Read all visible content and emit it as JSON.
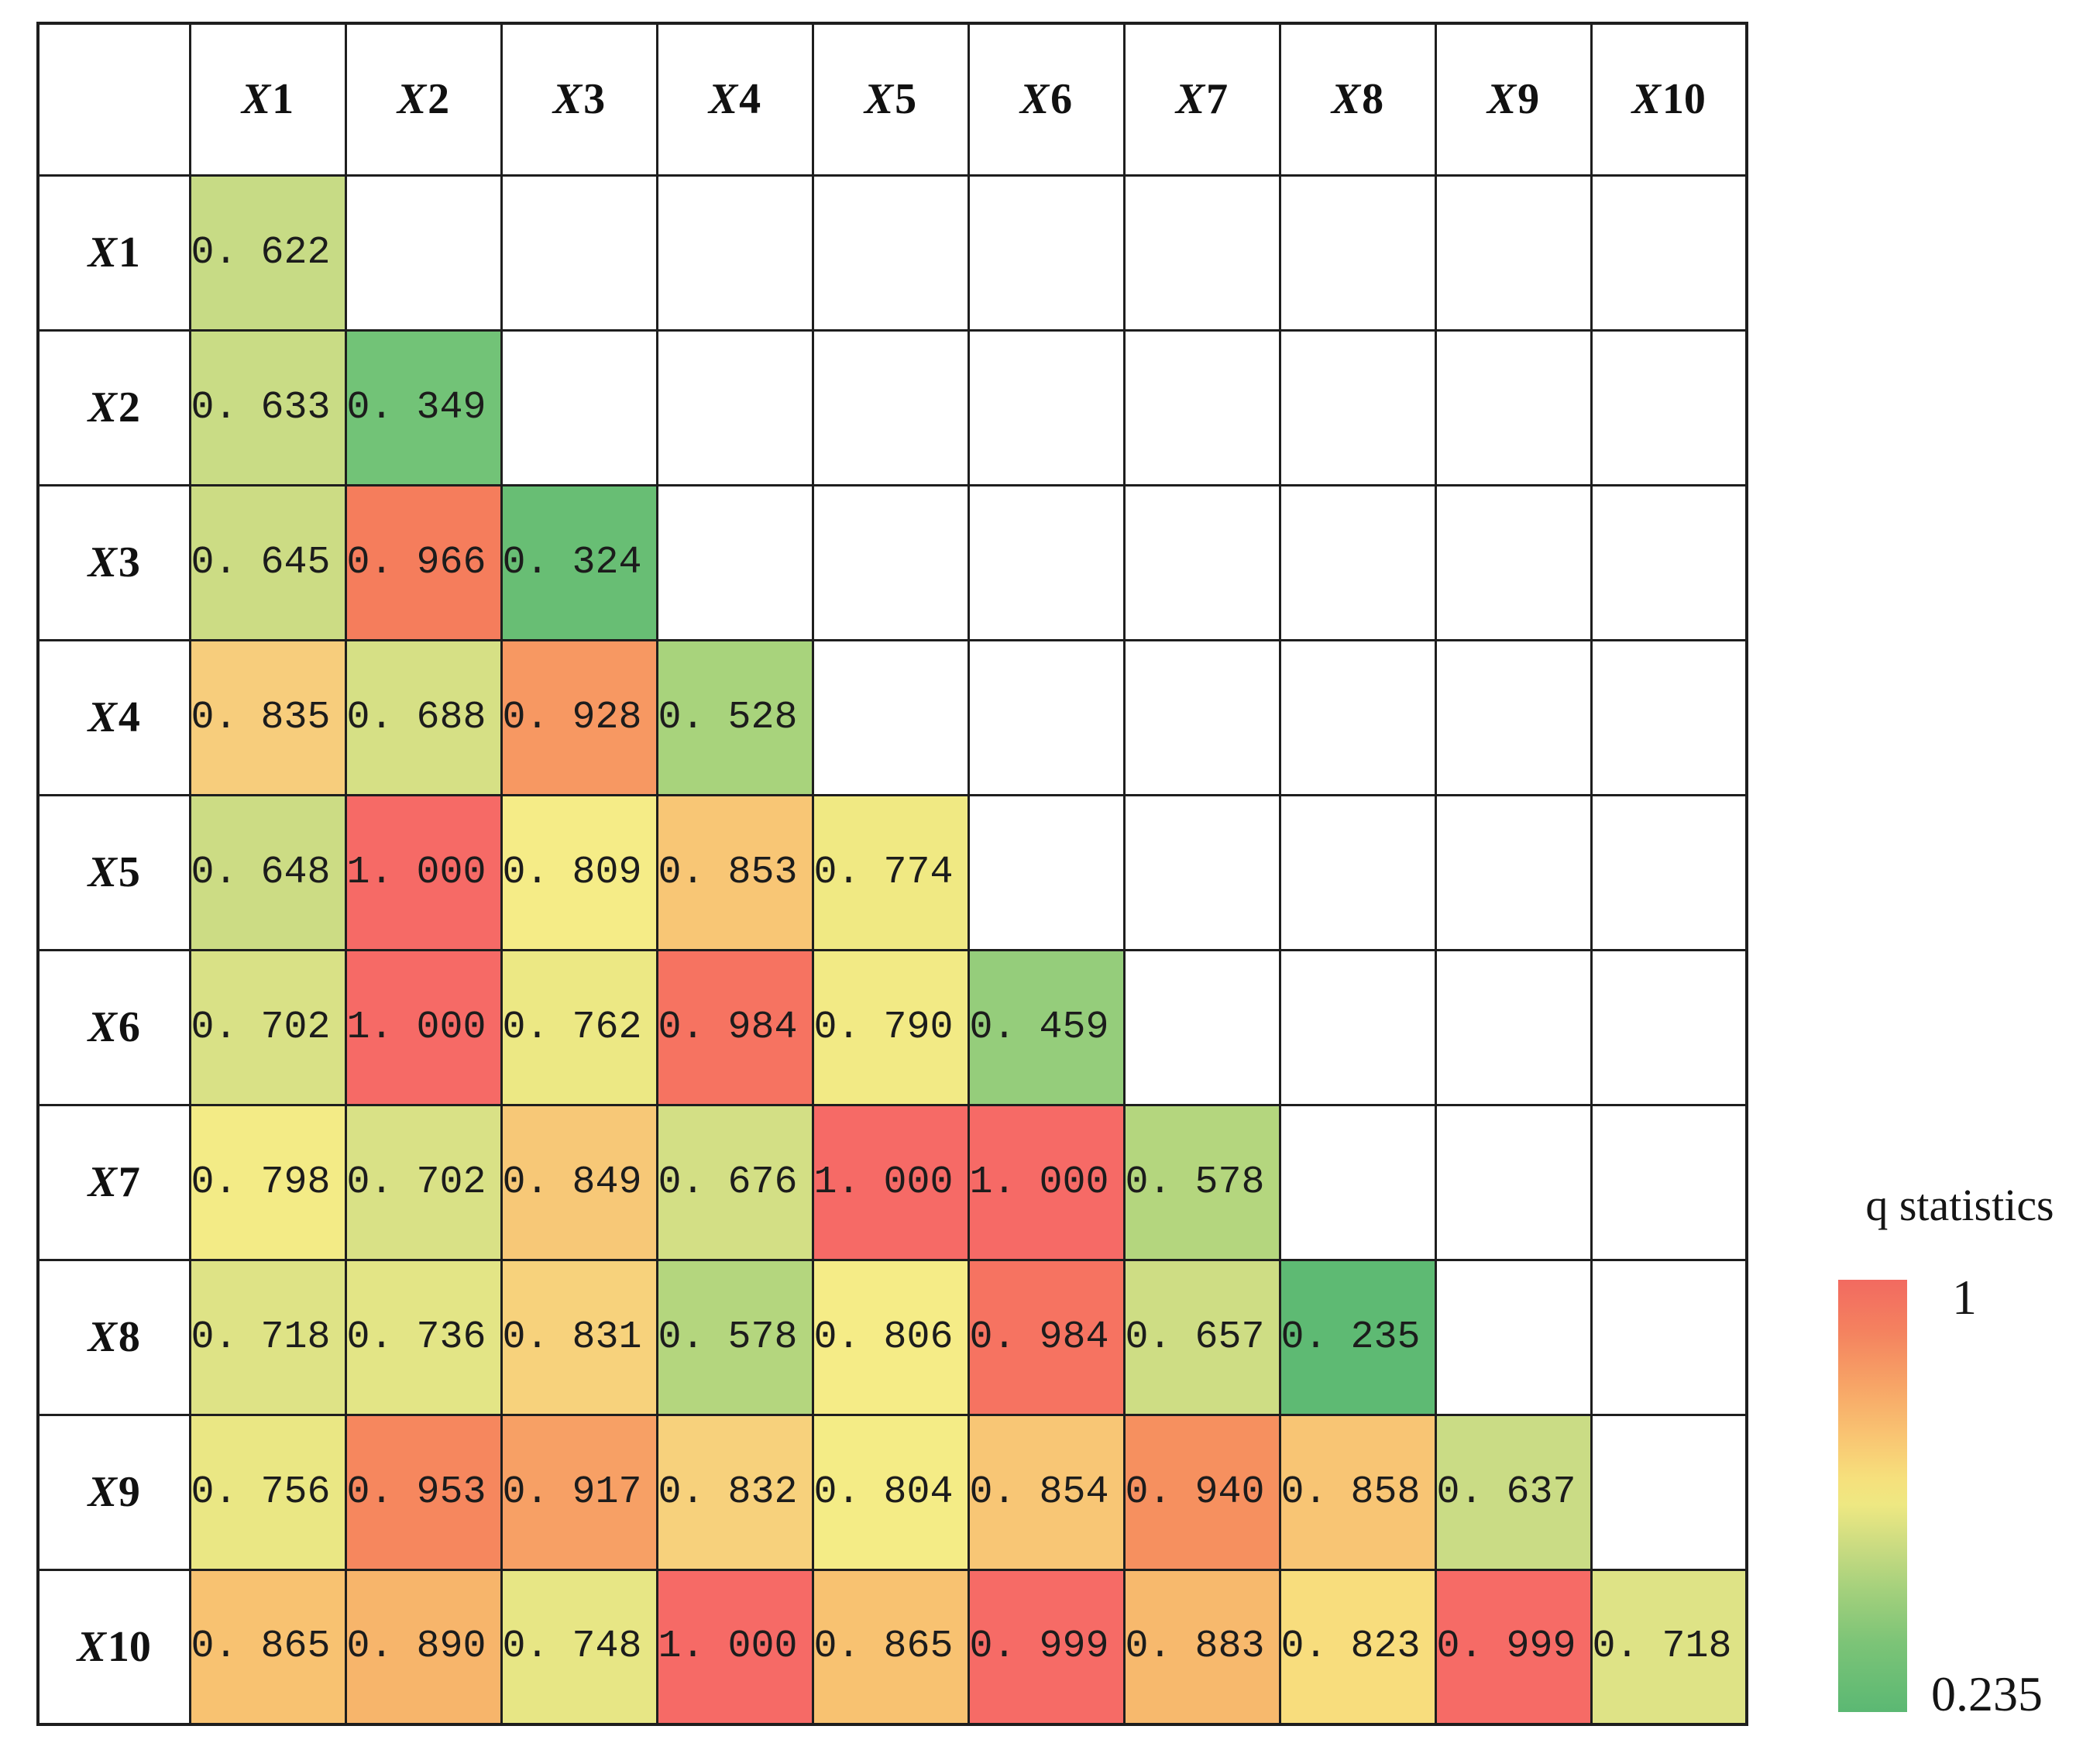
{
  "chart_data": {
    "type": "heatmap",
    "description": "Lower-triangular matrix of q statistics between factors X1-X10",
    "x_categories": [
      "X1",
      "X2",
      "X3",
      "X4",
      "X5",
      "X6",
      "X7",
      "X8",
      "X9",
      "X10"
    ],
    "y_categories": [
      "X1",
      "X2",
      "X3",
      "X4",
      "X5",
      "X6",
      "X7",
      "X8",
      "X9",
      "X10"
    ],
    "values": [
      [
        0.622
      ],
      [
        0.633,
        0.349
      ],
      [
        0.645,
        0.966,
        0.324
      ],
      [
        0.835,
        0.688,
        0.928,
        0.528
      ],
      [
        0.648,
        1.0,
        0.809,
        0.853,
        0.774
      ],
      [
        0.702,
        1.0,
        0.762,
        0.984,
        0.79,
        0.459
      ],
      [
        0.798,
        0.702,
        0.849,
        0.676,
        1.0,
        1.0,
        0.578
      ],
      [
        0.718,
        0.736,
        0.831,
        0.578,
        0.806,
        0.984,
        0.657,
        0.235
      ],
      [
        0.756,
        0.953,
        0.917,
        0.832,
        0.804,
        0.854,
        0.94,
        0.858,
        0.637
      ],
      [
        0.865,
        0.89,
        0.748,
        1.0,
        0.865,
        0.999,
        0.883,
        0.823,
        0.999,
        0.718
      ]
    ],
    "value_format": "0.000",
    "colorbar": {
      "label": "q statistics",
      "max": 1,
      "min": 0.235,
      "position": "right"
    }
  },
  "legend": {
    "title": "q statistics",
    "max_label": "1",
    "min_label": "0.235"
  },
  "colors": {
    "border": "#1e1e1e",
    "text": "#1c1c1c",
    "value_stops": [
      [
        0.235,
        "#5eba73"
      ],
      [
        0.324,
        "#68be74"
      ],
      [
        0.349,
        "#72c377"
      ],
      [
        0.459,
        "#95cd7b"
      ],
      [
        0.528,
        "#a8d37c"
      ],
      [
        0.578,
        "#b4d67e"
      ],
      [
        0.622,
        "#c7db85"
      ],
      [
        0.657,
        "#cedd84"
      ],
      [
        0.702,
        "#d9e186"
      ],
      [
        0.736,
        "#e3e586"
      ],
      [
        0.774,
        "#f0e983"
      ],
      [
        0.809,
        "#f5ec87"
      ],
      [
        0.823,
        "#f8dd7d"
      ],
      [
        0.835,
        "#f7cd7c"
      ],
      [
        0.865,
        "#f8c271"
      ],
      [
        0.89,
        "#f7b56b"
      ],
      [
        0.917,
        "#f7a065"
      ],
      [
        0.94,
        "#f6905f"
      ],
      [
        0.966,
        "#f57d5c"
      ],
      [
        1.0,
        "#f66a66"
      ]
    ],
    "legend_gradient": [
      [
        "0%",
        "#f26a60"
      ],
      [
        "12%",
        "#f4825f"
      ],
      [
        "24%",
        "#f7a366"
      ],
      [
        "36%",
        "#f9c472"
      ],
      [
        "46%",
        "#f6e07c"
      ],
      [
        "52%",
        "#eee882"
      ],
      [
        "62%",
        "#c9db81"
      ],
      [
        "72%",
        "#a3d07c"
      ],
      [
        "84%",
        "#7cc477"
      ],
      [
        "100%",
        "#5bb873"
      ]
    ]
  }
}
